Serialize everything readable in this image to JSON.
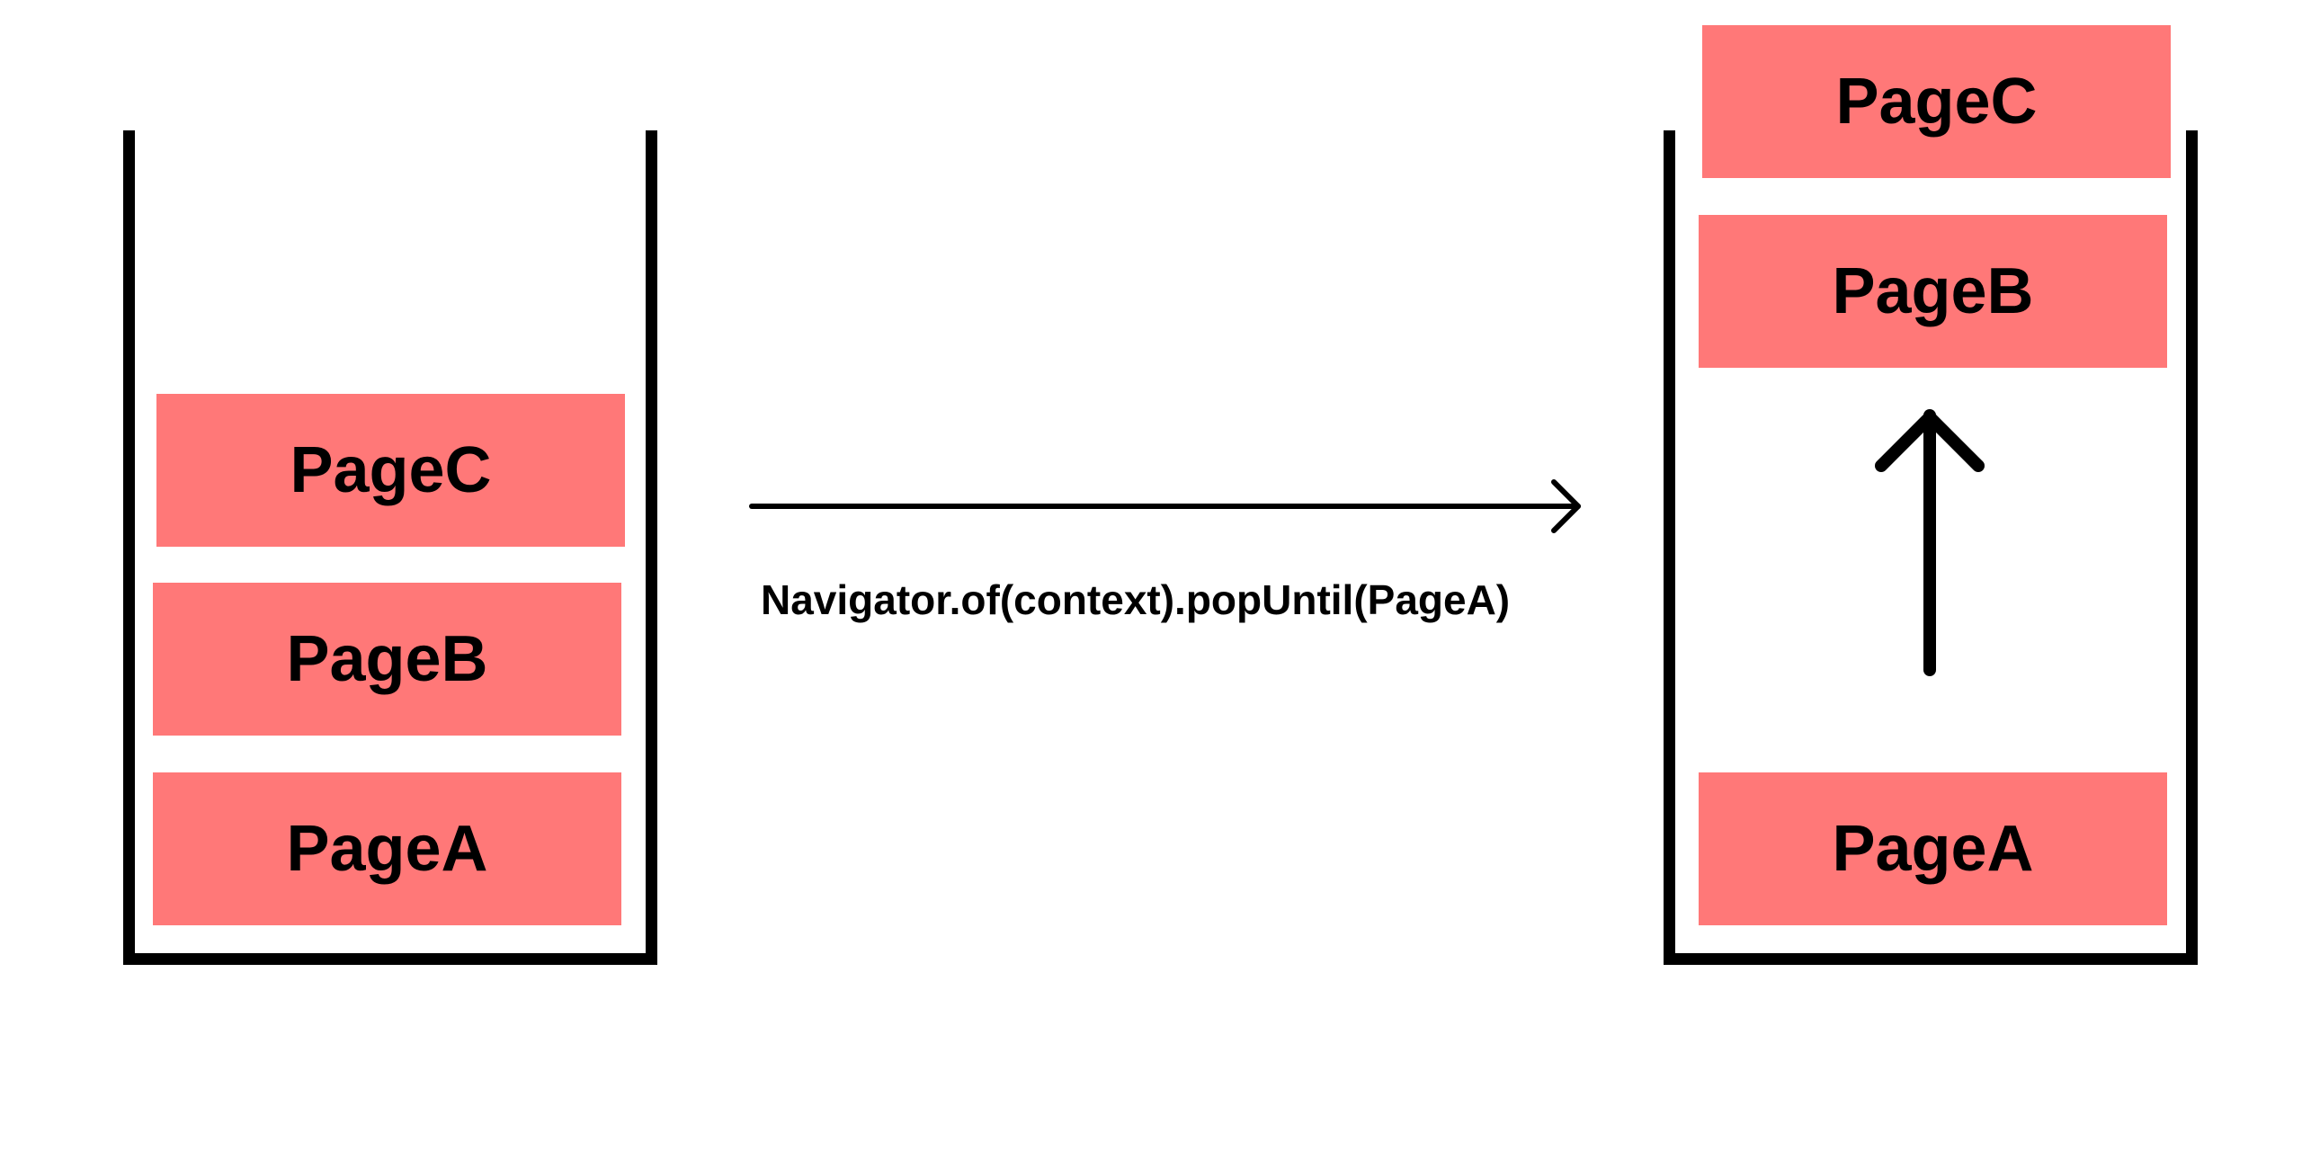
{
  "colors": {
    "page_fill": "#ff7878",
    "stroke": "#000000",
    "background": "#ffffff"
  },
  "left_stack": {
    "pages": [
      {
        "label": "PageC"
      },
      {
        "label": "PageB"
      },
      {
        "label": "PageA"
      }
    ]
  },
  "transition": {
    "label": "Navigator.of(context).popUntil(PageA)"
  },
  "right_stack": {
    "popped_pages": [
      {
        "label": "PageC"
      },
      {
        "label": "PageB"
      }
    ],
    "remaining_pages": [
      {
        "label": "PageA"
      }
    ]
  }
}
